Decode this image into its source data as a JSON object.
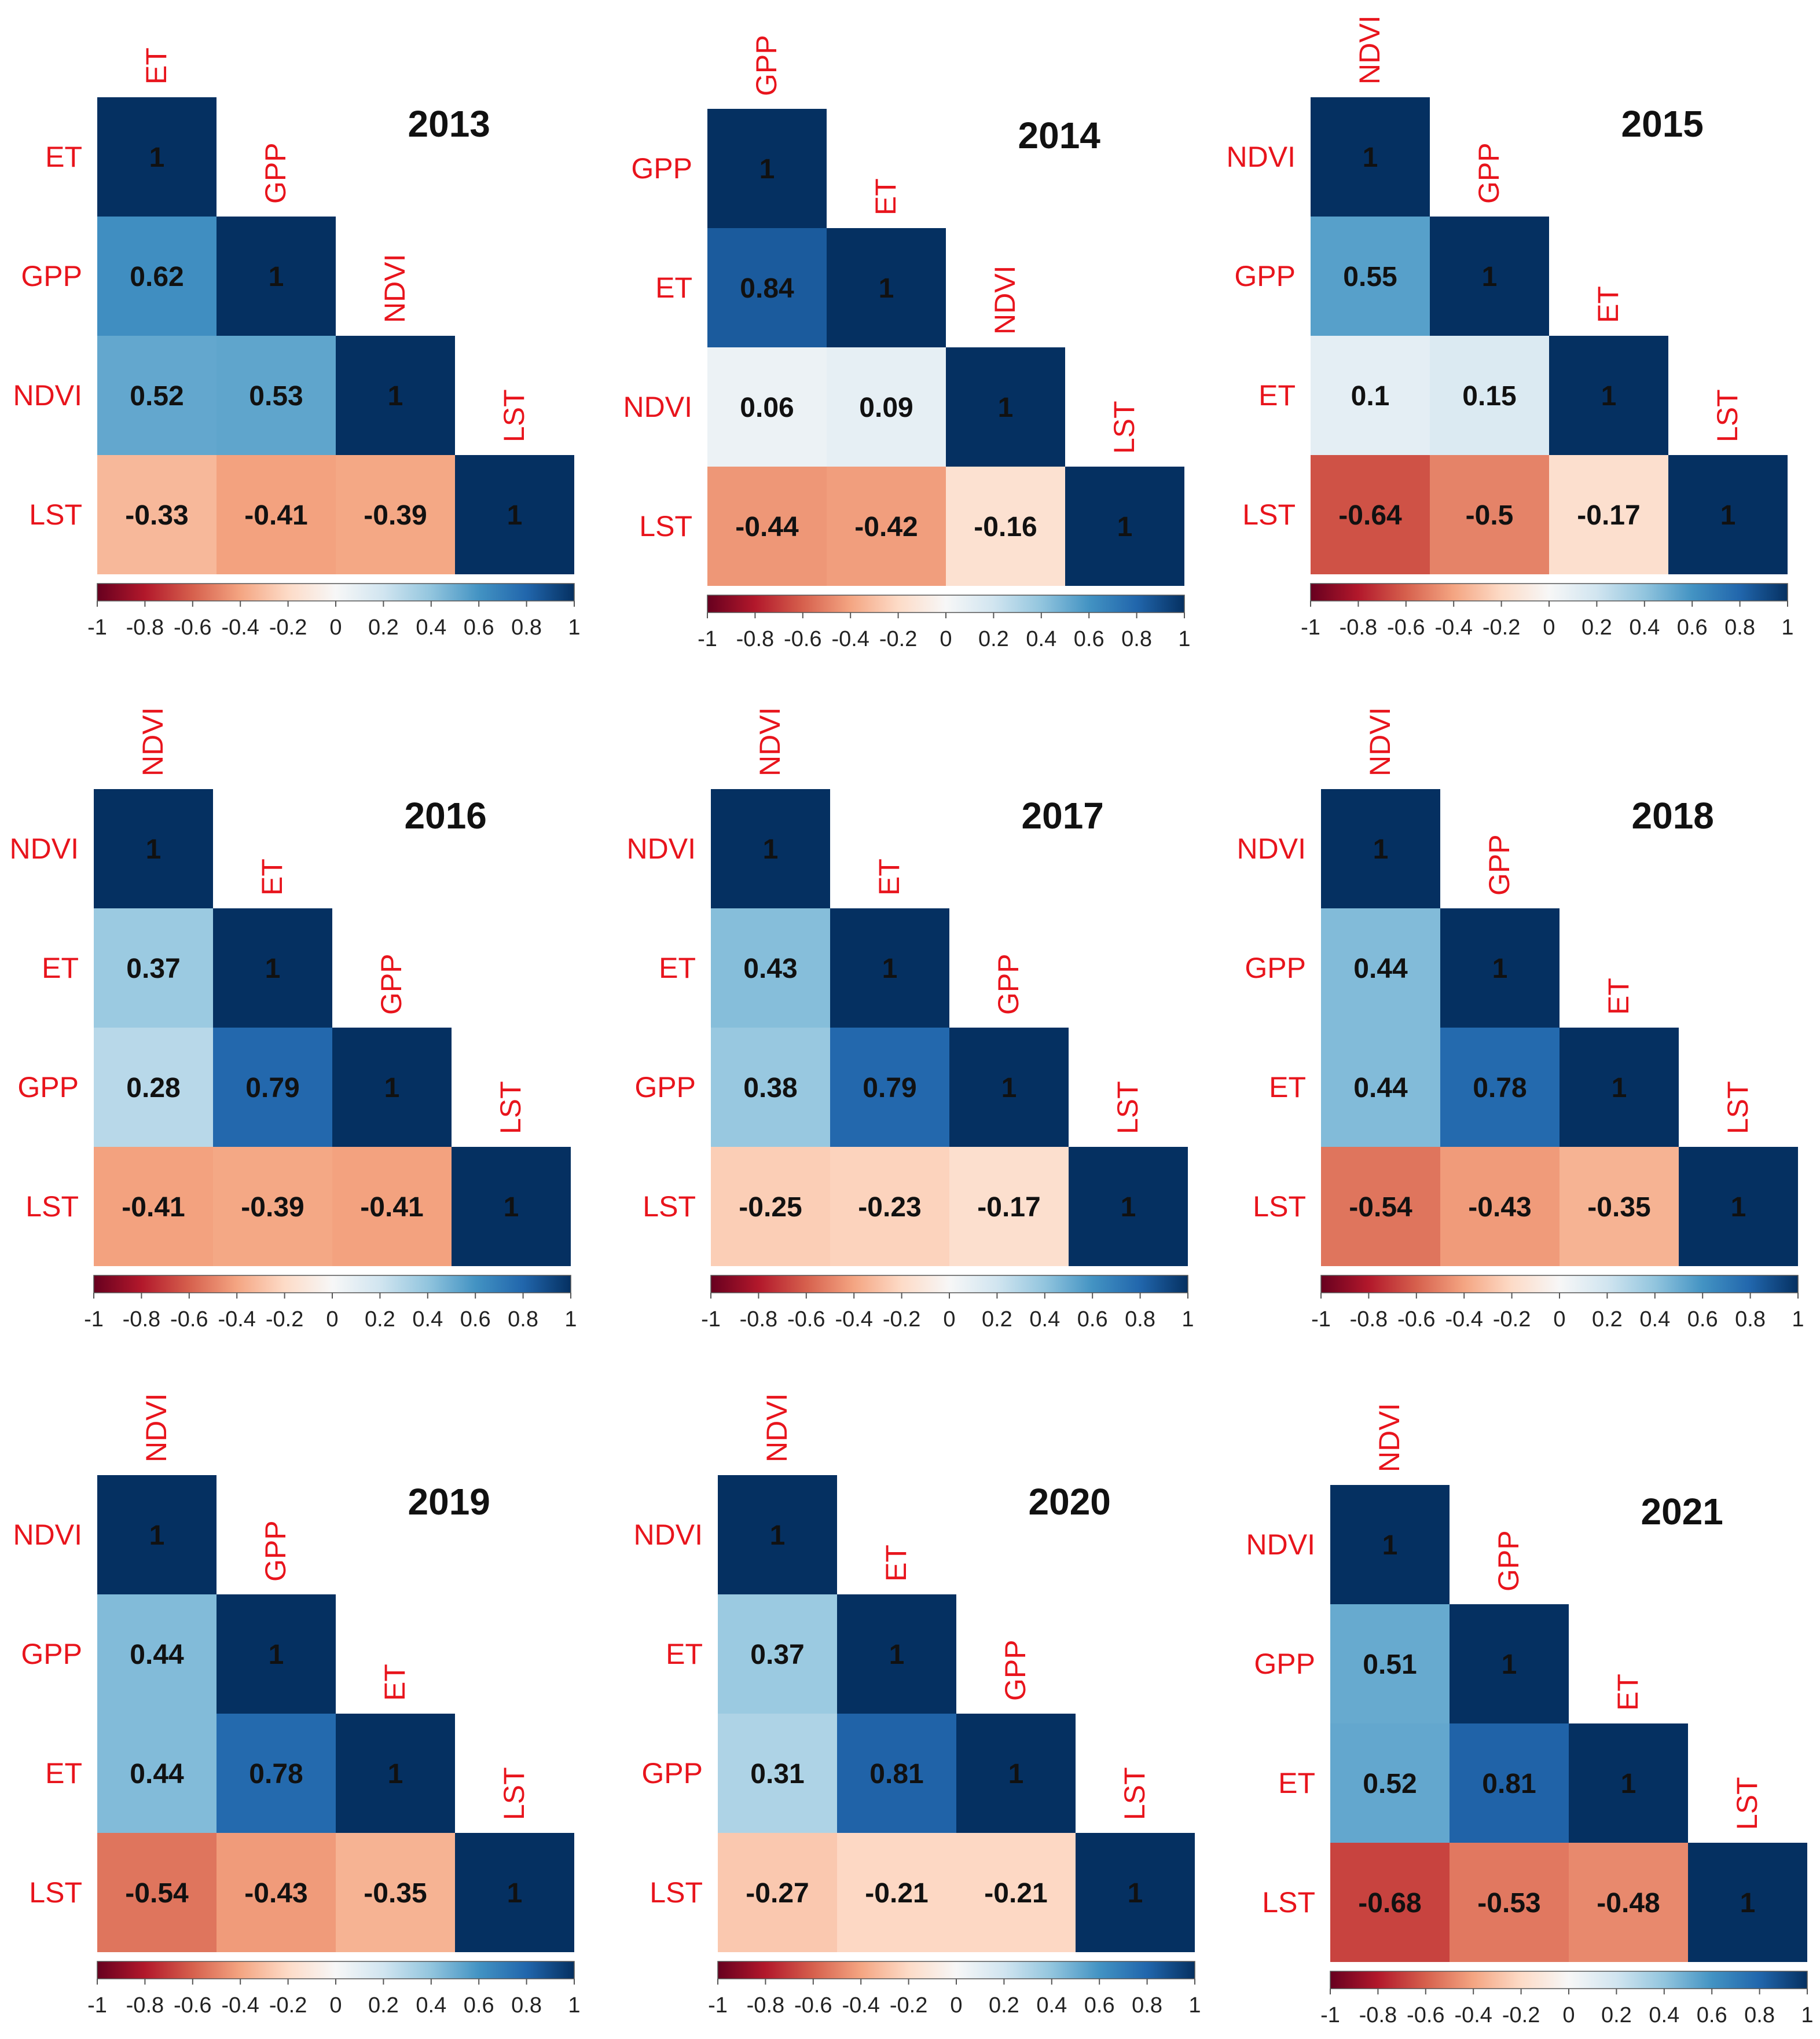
{
  "colors": {
    "label": "#e8141c",
    "scale": [
      "#67001f",
      "#b2182b",
      "#d6604d",
      "#f4a582",
      "#fddbc7",
      "#f7f7f7",
      "#d1e5f0",
      "#92c5de",
      "#4393c3",
      "#2166ac",
      "#053061"
    ]
  },
  "colorbar_ticks": [
    "-1",
    "-0.8",
    "-0.6",
    "-0.4",
    "-0.2",
    "0",
    "0.2",
    "0.4",
    "0.6",
    "0.8",
    "1"
  ],
  "chart_data": [
    {
      "type": "heatmap",
      "title": "2013",
      "variables": [
        "ET",
        "GPP",
        "NDVI",
        "LST"
      ],
      "matrix": [
        [
          1,
          null,
          null,
          null
        ],
        [
          0.62,
          1,
          null,
          null
        ],
        [
          0.52,
          0.53,
          1,
          null
        ],
        [
          -0.33,
          -0.41,
          -0.39,
          1
        ]
      ],
      "value_range": [
        -1,
        1
      ],
      "legend": "colorbar-bottom"
    },
    {
      "type": "heatmap",
      "title": "2014",
      "variables": [
        "GPP",
        "ET",
        "NDVI",
        "LST"
      ],
      "matrix": [
        [
          1,
          null,
          null,
          null
        ],
        [
          0.84,
          1,
          null,
          null
        ],
        [
          0.06,
          0.09,
          1,
          null
        ],
        [
          -0.44,
          -0.42,
          -0.16,
          1
        ]
      ],
      "value_range": [
        -1,
        1
      ],
      "legend": "colorbar-bottom"
    },
    {
      "type": "heatmap",
      "title": "2015",
      "variables": [
        "NDVI",
        "GPP",
        "ET",
        "LST"
      ],
      "matrix": [
        [
          1,
          null,
          null,
          null
        ],
        [
          0.55,
          1,
          null,
          null
        ],
        [
          0.1,
          0.15,
          1,
          null
        ],
        [
          -0.64,
          -0.5,
          -0.17,
          1
        ]
      ],
      "value_range": [
        -1,
        1
      ],
      "legend": "colorbar-bottom"
    },
    {
      "type": "heatmap",
      "title": "2016",
      "variables": [
        "NDVI",
        "ET",
        "GPP",
        "LST"
      ],
      "matrix": [
        [
          1,
          null,
          null,
          null
        ],
        [
          0.37,
          1,
          null,
          null
        ],
        [
          0.28,
          0.79,
          1,
          null
        ],
        [
          -0.41,
          -0.39,
          -0.41,
          1
        ]
      ],
      "value_range": [
        -1,
        1
      ],
      "legend": "colorbar-bottom"
    },
    {
      "type": "heatmap",
      "title": "2017",
      "variables": [
        "NDVI",
        "ET",
        "GPP",
        "LST"
      ],
      "matrix": [
        [
          1,
          null,
          null,
          null
        ],
        [
          0.43,
          1,
          null,
          null
        ],
        [
          0.38,
          0.79,
          1,
          null
        ],
        [
          -0.25,
          -0.23,
          -0.17,
          1
        ]
      ],
      "value_range": [
        -1,
        1
      ],
      "legend": "colorbar-bottom"
    },
    {
      "type": "heatmap",
      "title": "2018",
      "variables": [
        "NDVI",
        "GPP",
        "ET",
        "LST"
      ],
      "matrix": [
        [
          1,
          null,
          null,
          null
        ],
        [
          0.44,
          1,
          null,
          null
        ],
        [
          0.44,
          0.78,
          1,
          null
        ],
        [
          -0.54,
          -0.43,
          -0.35,
          1
        ]
      ],
      "value_range": [
        -1,
        1
      ],
      "legend": "colorbar-bottom"
    },
    {
      "type": "heatmap",
      "title": "2019",
      "variables": [
        "NDVI",
        "GPP",
        "ET",
        "LST"
      ],
      "matrix": [
        [
          1,
          null,
          null,
          null
        ],
        [
          0.44,
          1,
          null,
          null
        ],
        [
          0.44,
          0.78,
          1,
          null
        ],
        [
          -0.54,
          -0.43,
          -0.35,
          1
        ]
      ],
      "value_range": [
        -1,
        1
      ],
      "legend": "colorbar-bottom"
    },
    {
      "type": "heatmap",
      "title": "2020",
      "variables": [
        "NDVI",
        "ET",
        "GPP",
        "LST"
      ],
      "matrix": [
        [
          1,
          null,
          null,
          null
        ],
        [
          0.37,
          1,
          null,
          null
        ],
        [
          0.31,
          0.81,
          1,
          null
        ],
        [
          -0.27,
          -0.21,
          -0.21,
          1
        ]
      ],
      "value_range": [
        -1,
        1
      ],
      "legend": "colorbar-bottom"
    },
    {
      "type": "heatmap",
      "title": "2021",
      "variables": [
        "NDVI",
        "GPP",
        "ET",
        "LST"
      ],
      "matrix": [
        [
          1,
          null,
          null,
          null
        ],
        [
          0.51,
          1,
          null,
          null
        ],
        [
          0.52,
          0.81,
          1,
          null
        ],
        [
          -0.68,
          -0.53,
          -0.48,
          1
        ]
      ],
      "value_range": [
        -1,
        1
      ],
      "legend": "colorbar-bottom"
    }
  ]
}
